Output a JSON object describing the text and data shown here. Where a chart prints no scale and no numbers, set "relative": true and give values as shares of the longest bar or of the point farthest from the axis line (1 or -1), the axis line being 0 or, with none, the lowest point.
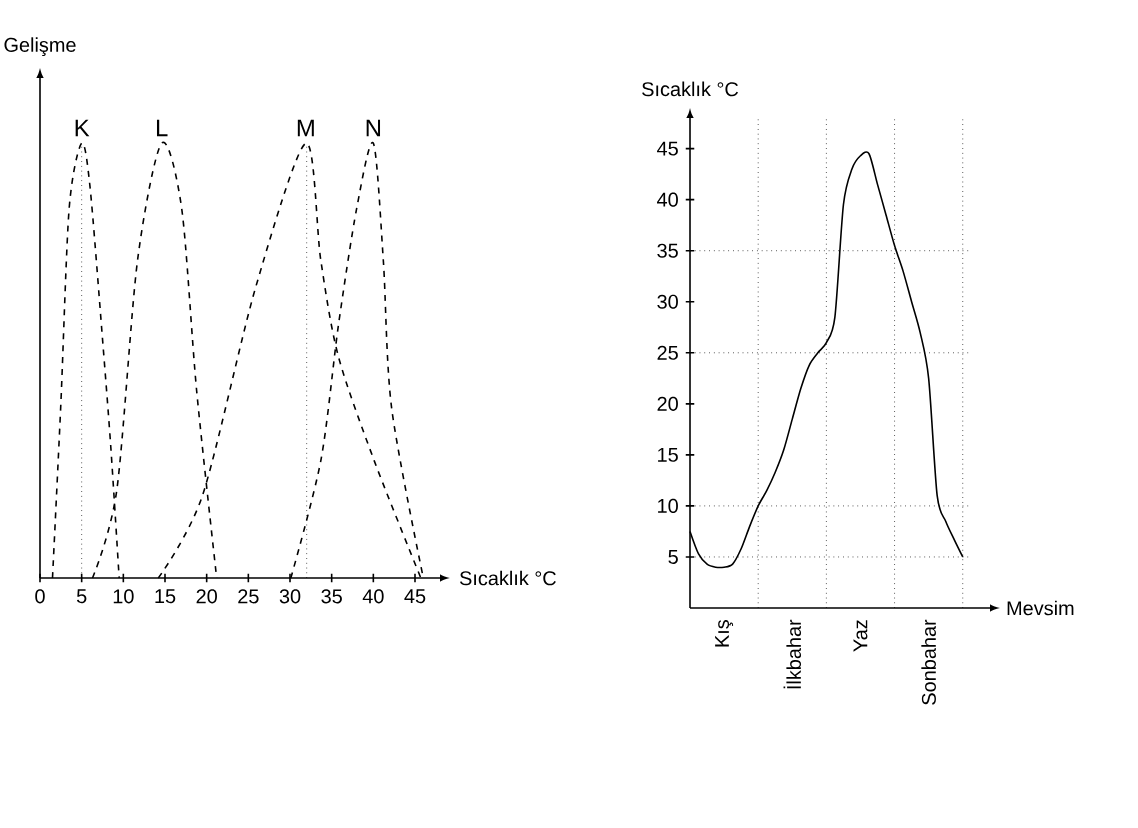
{
  "chart_data": [
    {
      "type": "line",
      "xlabel": "Sıcaklık °C",
      "ylabel": "Gelişme",
      "relative": true,
      "xlim": [
        0,
        48
      ],
      "xticks": [
        0,
        5,
        10,
        15,
        20,
        25,
        30,
        35,
        40,
        45
      ],
      "line_style": "dashed",
      "marker": "none",
      "ref_lines": [
        {
          "axis": "x",
          "value": 5,
          "line_style": "dotted"
        },
        {
          "axis": "x",
          "value": 32,
          "line_style": "dotted"
        }
      ],
      "series": [
        {
          "name": "K",
          "color": "#000000",
          "x": [
            1.5,
            2.5,
            3.5,
            5,
            6,
            7.5,
            8.5,
            9.5
          ],
          "values": [
            0,
            0.4,
            0.85,
            1,
            0.9,
            0.55,
            0.3,
            0
          ]
        },
        {
          "name": "L",
          "color": "#000000",
          "x": [
            6.3,
            9.2,
            11.7,
            14.6,
            17,
            18.8,
            21.2
          ],
          "values": [
            0,
            0.2,
            0.73,
            1,
            0.85,
            0.43,
            0
          ]
        },
        {
          "name": "M",
          "color": "#000000",
          "x": [
            14.2,
            19.5,
            25.9,
            31.9,
            33.7,
            35.8,
            40.1,
            45.7
          ],
          "values": [
            0,
            0.19,
            0.67,
            1,
            0.73,
            0.51,
            0.27,
            0
          ]
        },
        {
          "name": "N",
          "color": "#000000",
          "x": [
            30.1,
            33.7,
            35.8,
            38,
            40,
            41.2,
            42.2,
            46
          ],
          "values": [
            0,
            0.27,
            0.58,
            0.85,
            1,
            0.73,
            0.39,
            0
          ]
        }
      ]
    },
    {
      "type": "line",
      "xlabel": "Mevsim",
      "ylabel": "Sıcaklık °C",
      "ylim": [
        0,
        48
      ],
      "marker": "none",
      "line_style": "solid",
      "categories": [
        null,
        null,
        null,
        null,
        "Kış",
        null,
        null,
        null,
        null,
        null,
        null,
        null,
        "İlkbahar",
        null,
        null,
        null,
        null,
        null,
        null,
        null,
        "Yaz",
        null,
        null,
        null,
        null,
        null,
        null,
        null,
        "Sonbahar",
        null,
        null,
        null,
        null
      ],
      "yticks": [
        5,
        10,
        15,
        20,
        25,
        30,
        35,
        40,
        45
      ],
      "ref_lines": [
        {
          "axis": "y",
          "value": 5,
          "line_style": "dotted"
        },
        {
          "axis": "y",
          "value": 10,
          "line_style": "dotted"
        },
        {
          "axis": "y",
          "value": 25,
          "line_style": "dotted"
        },
        {
          "axis": "y",
          "value": 35,
          "line_style": "dotted"
        }
      ],
      "series": [
        {
          "color": "#000000",
          "values": [
            7.5,
            5.3,
            4.3,
            4,
            4,
            4.3,
            5.8,
            8,
            10,
            11.5,
            13.3,
            15.5,
            18.5,
            21.5,
            23.8,
            25,
            26,
            28.5,
            39.5,
            43,
            44.3,
            44.5,
            41.5,
            38.5,
            35.5,
            33,
            30,
            27,
            22.5,
            11,
            8.5,
            6.7,
            5
          ]
        }
      ]
    }
  ]
}
